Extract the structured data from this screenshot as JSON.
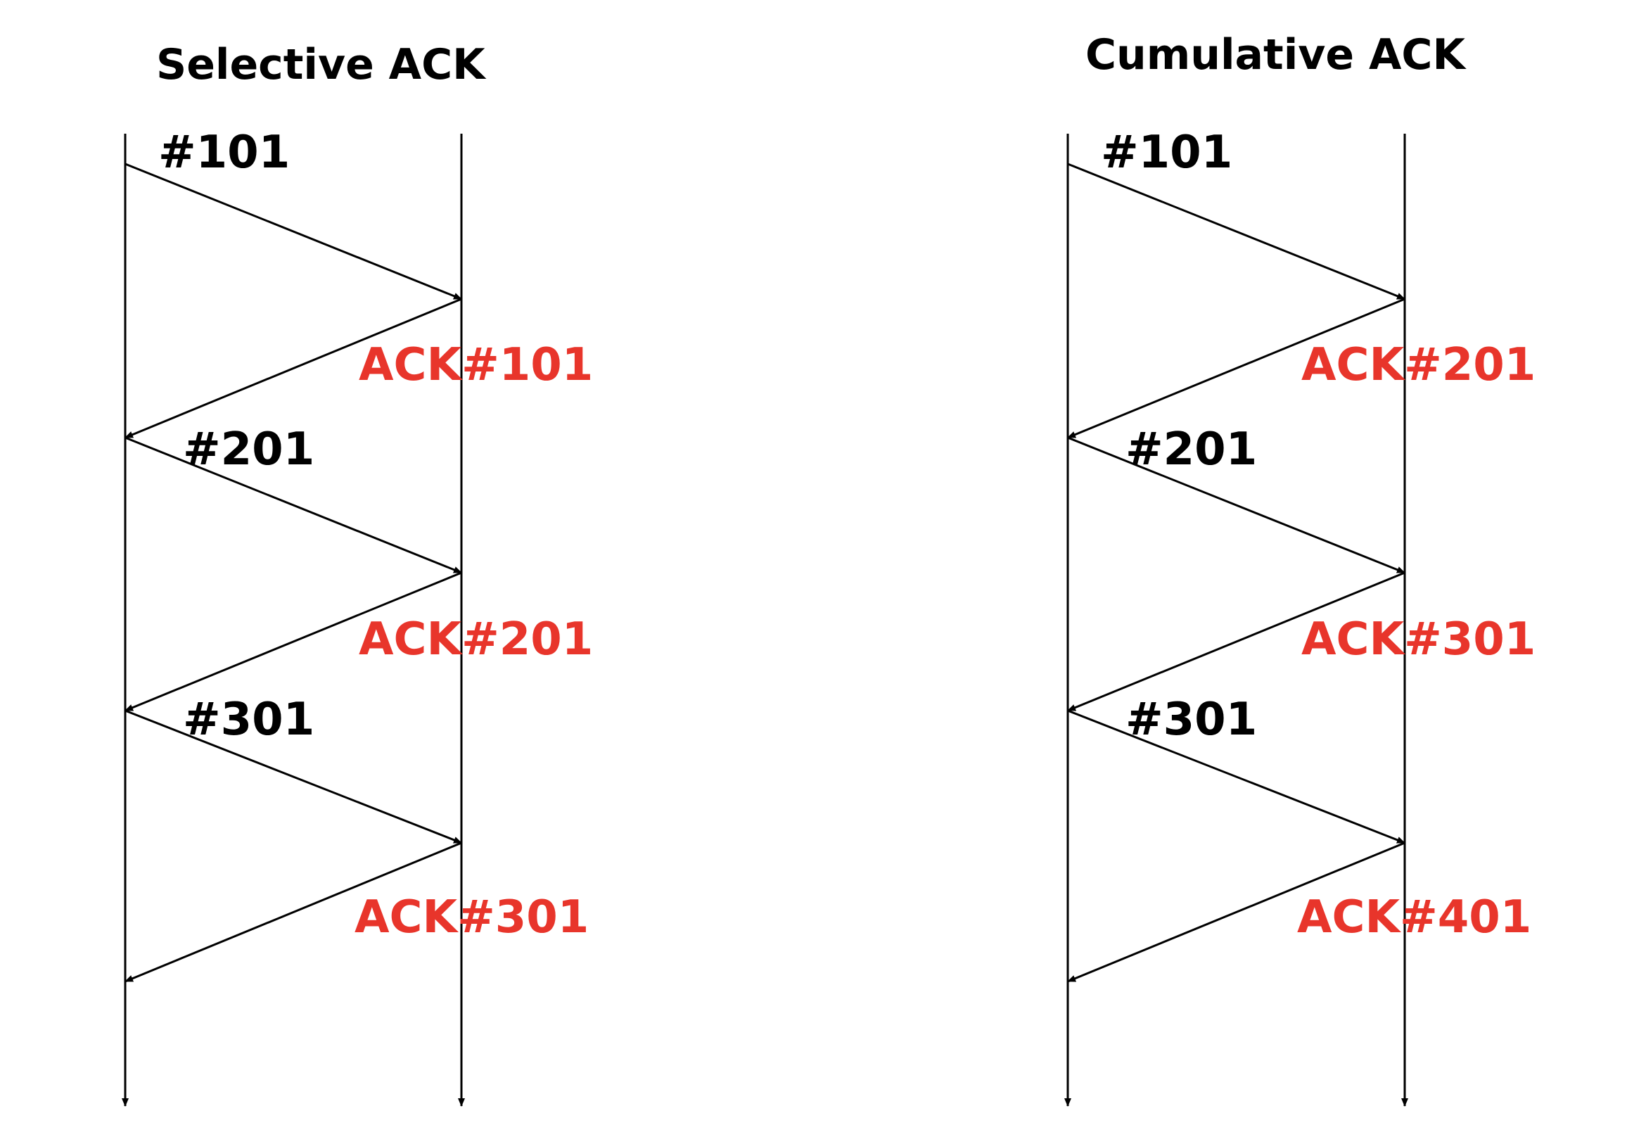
{
  "colors": {
    "line": "#000000",
    "seq_label": "#000000",
    "ack_label": "#e8352b"
  },
  "diagrams": [
    {
      "id": "selective",
      "title": "Selective ACK",
      "exchanges": [
        {
          "segment": "#101",
          "ack": "ACK#101"
        },
        {
          "segment": "#201",
          "ack": "ACK#201"
        },
        {
          "segment": "#301",
          "ack": "ACK#301"
        }
      ]
    },
    {
      "id": "cumulative",
      "title": "Cumulative ACK",
      "exchanges": [
        {
          "segment": "#101",
          "ack": "ACK#201"
        },
        {
          "segment": "#201",
          "ack": "ACK#301"
        },
        {
          "segment": "#301",
          "ack": "ACK#401"
        }
      ]
    }
  ]
}
